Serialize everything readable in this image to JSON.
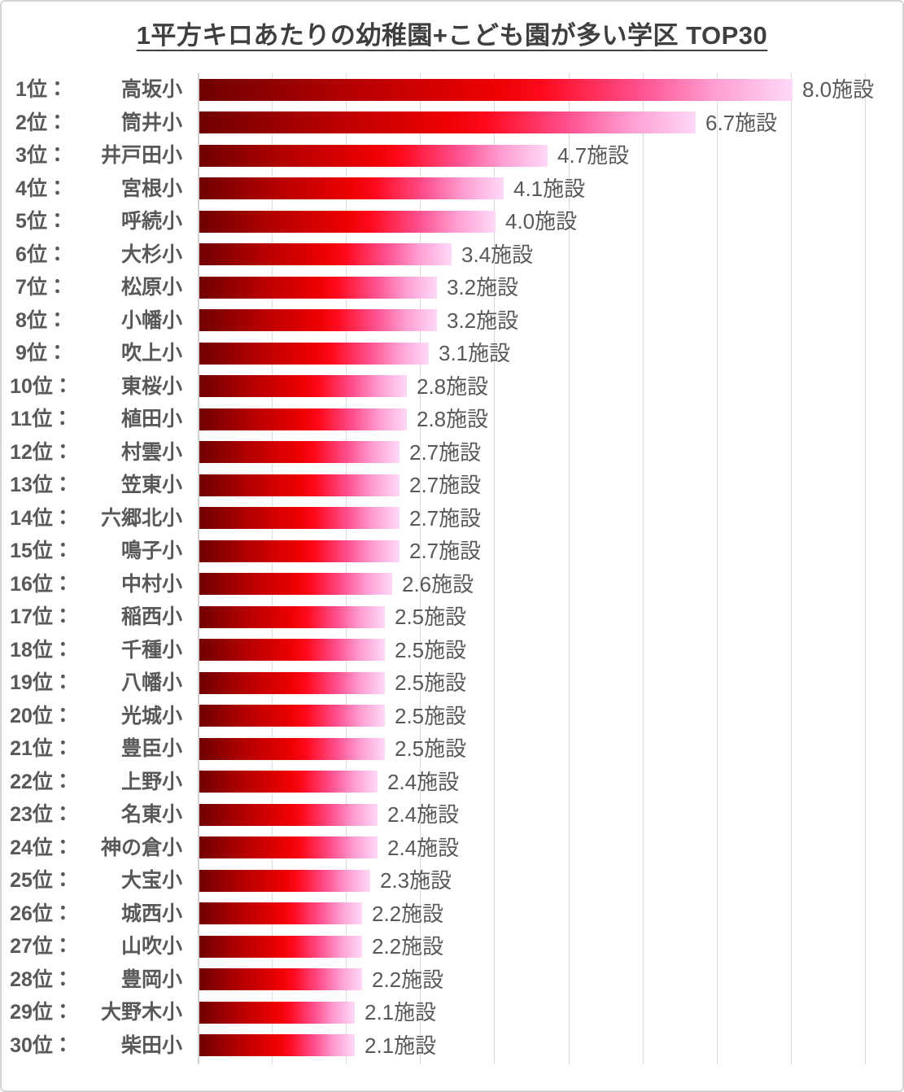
{
  "title": "1平方キロあたりの幼稚園+こども園が多い学区 TOP30",
  "chart_data": {
    "type": "bar",
    "orientation": "horizontal",
    "title": "1平方キロあたりの幼稚園+こども園が多い学区 TOP30",
    "value_unit": "施設",
    "rank_suffix": "位：",
    "xlim": [
      0,
      9.26
    ],
    "gridline_values": [
      0,
      1,
      2,
      3,
      4,
      5,
      6,
      7,
      8,
      9
    ],
    "grid": true,
    "legend": false,
    "categories": [
      "高坂小",
      "筒井小",
      "井戸田小",
      "宮根小",
      "呼続小",
      "大杉小",
      "松原小",
      "小幡小",
      "吹上小",
      "東桜小",
      "植田小",
      "村雲小",
      "笠東小",
      "六郷北小",
      "鳴子小",
      "中村小",
      "稲西小",
      "千種小",
      "八幡小",
      "光城小",
      "豊臣小",
      "上野小",
      "名東小",
      "神の倉小",
      "大宝小",
      "城西小",
      "山吹小",
      "豊岡小",
      "大野木小",
      "柴田小"
    ],
    "values": [
      8.0,
      6.7,
      4.7,
      4.1,
      4.0,
      3.4,
      3.2,
      3.2,
      3.1,
      2.8,
      2.8,
      2.7,
      2.7,
      2.7,
      2.7,
      2.6,
      2.5,
      2.5,
      2.5,
      2.5,
      2.5,
      2.4,
      2.4,
      2.4,
      2.3,
      2.2,
      2.2,
      2.2,
      2.1,
      2.1
    ],
    "rows": [
      {
        "rank": 1,
        "rank_label": "1位：",
        "school": "高坂小",
        "value": 8.0,
        "value_label": "8.0施設"
      },
      {
        "rank": 2,
        "rank_label": "2位：",
        "school": "筒井小",
        "value": 6.7,
        "value_label": "6.7施設"
      },
      {
        "rank": 3,
        "rank_label": "3位：",
        "school": "井戸田小",
        "value": 4.7,
        "value_label": "4.7施設"
      },
      {
        "rank": 4,
        "rank_label": "4位：",
        "school": "宮根小",
        "value": 4.1,
        "value_label": "4.1施設"
      },
      {
        "rank": 5,
        "rank_label": "5位：",
        "school": "呼続小",
        "value": 4.0,
        "value_label": "4.0施設"
      },
      {
        "rank": 6,
        "rank_label": "6位：",
        "school": "大杉小",
        "value": 3.4,
        "value_label": "3.4施設"
      },
      {
        "rank": 7,
        "rank_label": "7位：",
        "school": "松原小",
        "value": 3.2,
        "value_label": "3.2施設"
      },
      {
        "rank": 8,
        "rank_label": "8位：",
        "school": "小幡小",
        "value": 3.2,
        "value_label": "3.2施設"
      },
      {
        "rank": 9,
        "rank_label": "9位：",
        "school": "吹上小",
        "value": 3.1,
        "value_label": "3.1施設"
      },
      {
        "rank": 10,
        "rank_label": "10位：",
        "school": "東桜小",
        "value": 2.8,
        "value_label": "2.8施設"
      },
      {
        "rank": 11,
        "rank_label": "11位：",
        "school": "植田小",
        "value": 2.8,
        "value_label": "2.8施設"
      },
      {
        "rank": 12,
        "rank_label": "12位：",
        "school": "村雲小",
        "value": 2.7,
        "value_label": "2.7施設"
      },
      {
        "rank": 13,
        "rank_label": "13位：",
        "school": "笠東小",
        "value": 2.7,
        "value_label": "2.7施設"
      },
      {
        "rank": 14,
        "rank_label": "14位：",
        "school": "六郷北小",
        "value": 2.7,
        "value_label": "2.7施設"
      },
      {
        "rank": 15,
        "rank_label": "15位：",
        "school": "鳴子小",
        "value": 2.7,
        "value_label": "2.7施設"
      },
      {
        "rank": 16,
        "rank_label": "16位：",
        "school": "中村小",
        "value": 2.6,
        "value_label": "2.6施設"
      },
      {
        "rank": 17,
        "rank_label": "17位：",
        "school": "稲西小",
        "value": 2.5,
        "value_label": "2.5施設"
      },
      {
        "rank": 18,
        "rank_label": "18位：",
        "school": "千種小",
        "value": 2.5,
        "value_label": "2.5施設"
      },
      {
        "rank": 19,
        "rank_label": "19位：",
        "school": "八幡小",
        "value": 2.5,
        "value_label": "2.5施設"
      },
      {
        "rank": 20,
        "rank_label": "20位：",
        "school": "光城小",
        "value": 2.5,
        "value_label": "2.5施設"
      },
      {
        "rank": 21,
        "rank_label": "21位：",
        "school": "豊臣小",
        "value": 2.5,
        "value_label": "2.5施設"
      },
      {
        "rank": 22,
        "rank_label": "22位：",
        "school": "上野小",
        "value": 2.4,
        "value_label": "2.4施設"
      },
      {
        "rank": 23,
        "rank_label": "23位：",
        "school": "名東小",
        "value": 2.4,
        "value_label": "2.4施設"
      },
      {
        "rank": 24,
        "rank_label": "24位：",
        "school": "神の倉小",
        "value": 2.4,
        "value_label": "2.4施設"
      },
      {
        "rank": 25,
        "rank_label": "25位：",
        "school": "大宝小",
        "value": 2.3,
        "value_label": "2.3施設"
      },
      {
        "rank": 26,
        "rank_label": "26位：",
        "school": "城西小",
        "value": 2.2,
        "value_label": "2.2施設"
      },
      {
        "rank": 27,
        "rank_label": "27位：",
        "school": "山吹小",
        "value": 2.2,
        "value_label": "2.2施設"
      },
      {
        "rank": 28,
        "rank_label": "28位：",
        "school": "豊岡小",
        "value": 2.2,
        "value_label": "2.2施設"
      },
      {
        "rank": 29,
        "rank_label": "29位：",
        "school": "大野木小",
        "value": 2.1,
        "value_label": "2.1施設"
      },
      {
        "rank": 30,
        "rank_label": "30位：",
        "school": "柴田小",
        "value": 2.1,
        "value_label": "2.1施設"
      }
    ]
  },
  "colors": {
    "bar_gradient_start": "#6f0000",
    "bar_gradient_mid": "#ff0a1e",
    "bar_gradient_end": "#ffd9f8",
    "grid": "#d9d9d9",
    "title_text": "#3f3f3f",
    "label_text": "#595959",
    "value_text": "#595959",
    "page_border": "#d4d4d4"
  }
}
